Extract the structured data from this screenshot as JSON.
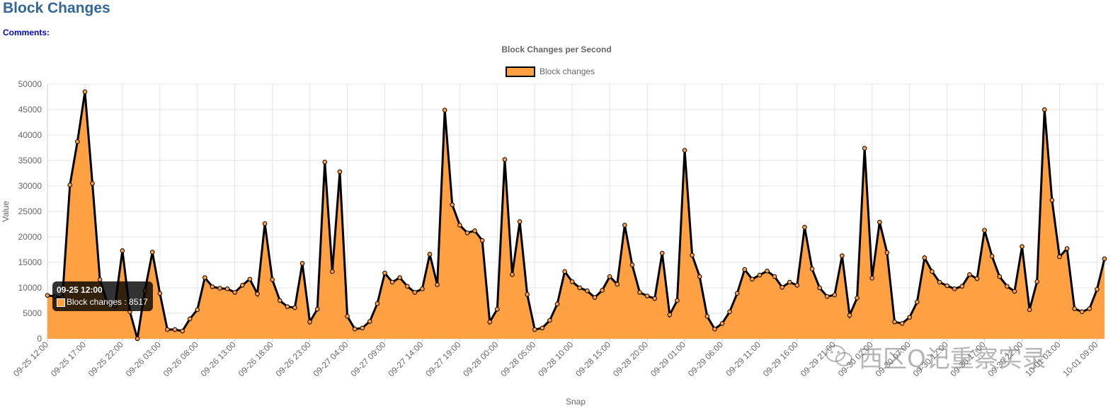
{
  "page": {
    "title": "Block Changes",
    "comments_label": "Comments:"
  },
  "colors": {
    "fill": "#ffa042",
    "stroke": "#000000",
    "grid": "#e3e3e3",
    "text": "#666666"
  },
  "tooltip": {
    "title": "09-25 12:00",
    "body": "Block changes : 8517"
  },
  "watermark": {
    "text": "西区Q记重察实录",
    "icon": "wechat-icon"
  },
  "chart_data": {
    "type": "area",
    "title": "Block Changes per Second",
    "xlabel": "Snap",
    "ylabel": "Value",
    "ylim": [
      0,
      50000
    ],
    "yticks": [
      0,
      5000,
      10000,
      15000,
      20000,
      25000,
      30000,
      35000,
      40000,
      45000,
      50000
    ],
    "grid": true,
    "legend_position": "top-center",
    "x_tick_labels": [
      "09-25 12:00",
      "09-25 17:00",
      "09-25 22:00",
      "09-26 03:00",
      "09-26 08:00",
      "09-26 13:00",
      "09-26 18:00",
      "09-26 23:00",
      "09-27 04:00",
      "09-27 09:00",
      "09-27 14:00",
      "09-27 19:00",
      "09-28 00:00",
      "09-28 05:00",
      "09-28 10:00",
      "09-28 15:00",
      "09-28 20:00",
      "09-29 01:00",
      "09-29 06:00",
      "09-29 11:00",
      "09-29 16:00",
      "09-29 21:00",
      "09-30 02:00",
      "09-30 07:00",
      "09-30 12:00",
      "09-30 17:00",
      "09-30 22:00",
      "10-01 03:00",
      "10-01 09:00"
    ],
    "series": [
      {
        "name": "Block changes",
        "values": [
          8517,
          8300,
          8100,
          30200,
          38700,
          48500,
          30500,
          11600,
          7000,
          6400,
          17300,
          5300,
          0,
          9400,
          17000,
          8900,
          1800,
          1800,
          1500,
          3900,
          5700,
          12000,
          10200,
          9900,
          9800,
          9100,
          10500,
          11700,
          8800,
          22600,
          11600,
          7500,
          6300,
          6100,
          14800,
          3300,
          5800,
          34700,
          13200,
          32800,
          4400,
          1900,
          2100,
          3400,
          6900,
          12900,
          11100,
          12000,
          10300,
          9100,
          9800,
          16600,
          10600,
          44900,
          26300,
          22300,
          20800,
          21200,
          19300,
          3300,
          5800,
          35200,
          12600,
          23000,
          8700,
          1800,
          2100,
          3600,
          6800,
          13200,
          11200,
          10000,
          9400,
          8100,
          9500,
          12200,
          10700,
          22300,
          14500,
          9100,
          8400,
          7900,
          16800,
          4700,
          7500,
          37000,
          16400,
          12200,
          4400,
          1900,
          3000,
          5300,
          8900,
          13600,
          11700,
          12500,
          13300,
          12200,
          10100,
          11100,
          10500,
          21900,
          13700,
          10000,
          8300,
          8600,
          16300,
          4600,
          8000,
          37400,
          11900,
          22900,
          16900,
          3300,
          3000,
          4200,
          7200,
          15900,
          13200,
          11100,
          10400,
          9800,
          10300,
          12600,
          11800,
          21300,
          16200,
          12200,
          10300,
          9300,
          18100,
          5700,
          11200,
          45000,
          27200,
          16100,
          17700,
          5900,
          5300,
          5900,
          9700,
          15700
        ]
      }
    ]
  }
}
